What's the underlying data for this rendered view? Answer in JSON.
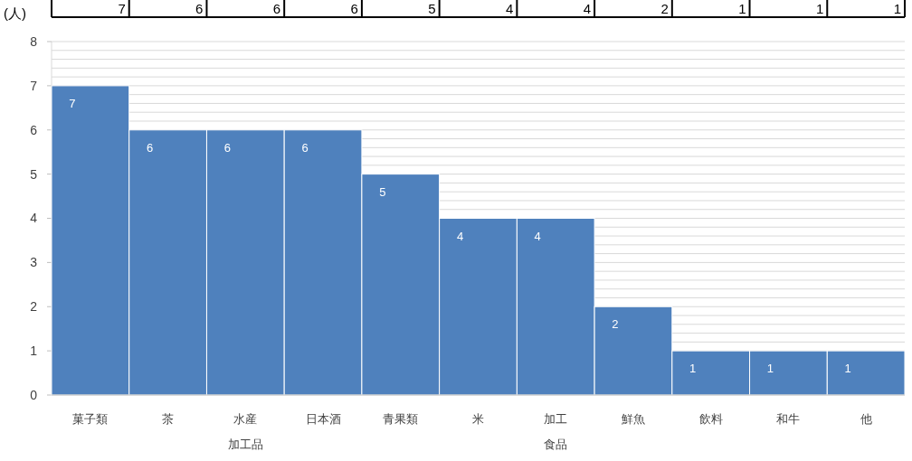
{
  "chart_data": {
    "type": "bar",
    "ylabel": "(人)",
    "categories": [
      "菓子類",
      "茶",
      "水産加工品",
      "日本酒",
      "青果類",
      "米",
      "加工食品",
      "鮮魚",
      "飲料",
      "和牛",
      "他"
    ],
    "values": [
      7,
      6,
      6,
      6,
      5,
      4,
      4,
      2,
      1,
      1,
      1
    ],
    "color": "#4f81bd",
    "ylim": [
      0,
      8
    ],
    "yticks": [
      0,
      1,
      {
        "value": 1.2,
        "label": null
      },
      {
        "value": 1.4,
        "label": null
      },
      {
        "value": 1.6,
        "label": null
      },
      {
        "value": 1.8,
        "label": null
      },
      2,
      {
        "value": 2.2,
        "label": null
      },
      {
        "value": 2.4,
        "label": null
      },
      {
        "value": 2.6,
        "label": null
      },
      {
        "value": 2.8,
        "label": null
      },
      3,
      {
        "value": 3.2,
        "label": null
      },
      {
        "value": 3.4,
        "label": null
      },
      {
        "value": 3.6,
        "label": null
      },
      {
        "value": 3.8,
        "label": null
      },
      4,
      {
        "value": 4.2,
        "label": null
      },
      {
        "value": 4.4,
        "label": null
      },
      {
        "value": 4.6,
        "label": null
      },
      {
        "value": 4.8,
        "label": null
      },
      5,
      {
        "value": 5.2,
        "label": null
      },
      {
        "value": 5.4,
        "label": null
      },
      {
        "value": 5.6,
        "label": null
      },
      {
        "value": 5.8,
        "label": null
      },
      6,
      {
        "value": 6.2,
        "label": null
      },
      {
        "value": 6.4,
        "label": null
      },
      {
        "value": 6.6,
        "label": null
      },
      {
        "value": 6.8,
        "label": null
      },
      7,
      {
        "value": 7.2,
        "label": null
      },
      {
        "value": 7.4,
        "label": null
      },
      {
        "value": 7.6,
        "label": null
      },
      {
        "value": 7.8,
        "label": null
      },
      8
    ],
    "grid": "y",
    "data_labels": true,
    "value_labels": [
      "7",
      "6",
      "6",
      "6",
      "5",
      "4",
      "4",
      "2",
      "1",
      "1",
      "1"
    ]
  }
}
